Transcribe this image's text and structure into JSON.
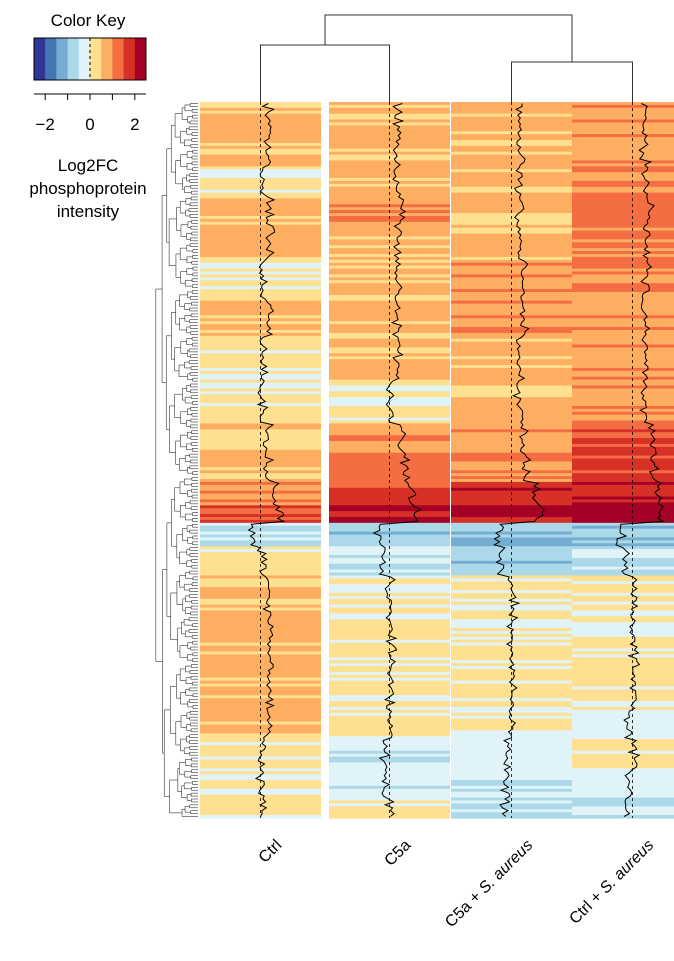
{
  "chart_data": {
    "type": "heatmap",
    "title": "",
    "color_key": {
      "title": "Color Key",
      "label_lines": [
        "Log2FC",
        "phosphoprotein",
        "intensity"
      ],
      "range": [
        -2.5,
        2.5
      ],
      "ticks": [
        -2,
        0,
        2
      ],
      "tick_labels": [
        "−2",
        "0",
        "2"
      ],
      "colors": [
        "#313695",
        "#4575b4",
        "#74add1",
        "#abd9e9",
        "#e0f3f8",
        "#fee090",
        "#fdae61",
        "#f46d43",
        "#d73027",
        "#a50026"
      ],
      "dashed_line_at": 0
    },
    "columns": [
      {
        "label": "Ctrl",
        "italic": "",
        "order": 0
      },
      {
        "label": "C5a",
        "italic": "",
        "order": 1
      },
      {
        "label": "C5a + ",
        "italic": "S. aureus",
        "order": 2
      },
      {
        "label": "Ctrl + ",
        "italic": "S. aureus",
        "order": 3
      }
    ],
    "column_dendrogram": {
      "merges": [
        [
          0,
          1,
          0.45
        ],
        [
          2,
          3,
          0.35
        ],
        [
          "a",
          "b",
          1.0
        ]
      ]
    },
    "row_blocks": [
      {
        "rows": 8,
        "values": [
          0.6,
          0.6,
          0.6,
          1.0
        ]
      },
      {
        "rows": 14,
        "values": [
          0.6,
          0.6,
          0.6,
          0.9
        ]
      },
      {
        "rows": 10,
        "values": [
          0.1,
          0.6,
          0.6,
          1.0
        ]
      },
      {
        "rows": 10,
        "values": [
          0.6,
          1.0,
          0.6,
          1.2
        ]
      },
      {
        "rows": 12,
        "values": [
          0.6,
          0.6,
          0.6,
          1.1
        ]
      },
      {
        "rows": 14,
        "values": [
          0.1,
          0.6,
          0.9,
          1.0
        ]
      },
      {
        "rows": 12,
        "values": [
          0.6,
          0.6,
          0.9,
          0.9
        ]
      },
      {
        "rows": 16,
        "values": [
          0.1,
          0.6,
          0.6,
          0.9
        ]
      },
      {
        "rows": 14,
        "values": [
          0.1,
          0.1,
          0.6,
          0.9
        ]
      },
      {
        "rows": 10,
        "values": [
          0.6,
          1.0,
          1.0,
          1.5
        ]
      },
      {
        "rows": 10,
        "values": [
          0.6,
          1.2,
          1.0,
          1.6
        ]
      },
      {
        "rows": 8,
        "values": [
          1.0,
          1.6,
          1.8,
          1.9
        ]
      },
      {
        "rows": 6,
        "values": [
          1.4,
          2.0,
          2.2,
          2.2
        ]
      },
      {
        "rows": 3,
        "values": [
          -0.6,
          -0.9,
          -1.0,
          -1.0
        ]
      },
      {
        "rows": 5,
        "values": [
          -0.7,
          -0.8,
          -1.2,
          -0.9
        ]
      },
      {
        "rows": 10,
        "values": [
          0.1,
          -0.5,
          -0.8,
          -0.6
        ]
      },
      {
        "rows": 12,
        "values": [
          0.6,
          0.1,
          0.1,
          0.1
        ]
      },
      {
        "rows": 20,
        "values": [
          0.6,
          0.1,
          0.1,
          0.1
        ]
      },
      {
        "rows": 14,
        "values": [
          0.6,
          0.1,
          0.1,
          0.1
        ]
      },
      {
        "rows": 10,
        "values": [
          0.6,
          0.1,
          0.1,
          -0.3
        ]
      },
      {
        "rows": 10,
        "values": [
          0.1,
          -0.3,
          -0.3,
          0.1
        ]
      },
      {
        "rows": 10,
        "values": [
          0.1,
          -0.4,
          -0.4,
          -0.3
        ]
      },
      {
        "rows": 7,
        "values": [
          0.1,
          0.1,
          -0.5,
          -0.4
        ]
      }
    ],
    "trace": {
      "color": "#000000",
      "baseline_style": "dashed"
    },
    "row_dendrogram": "hierarchical clustering of rows"
  }
}
